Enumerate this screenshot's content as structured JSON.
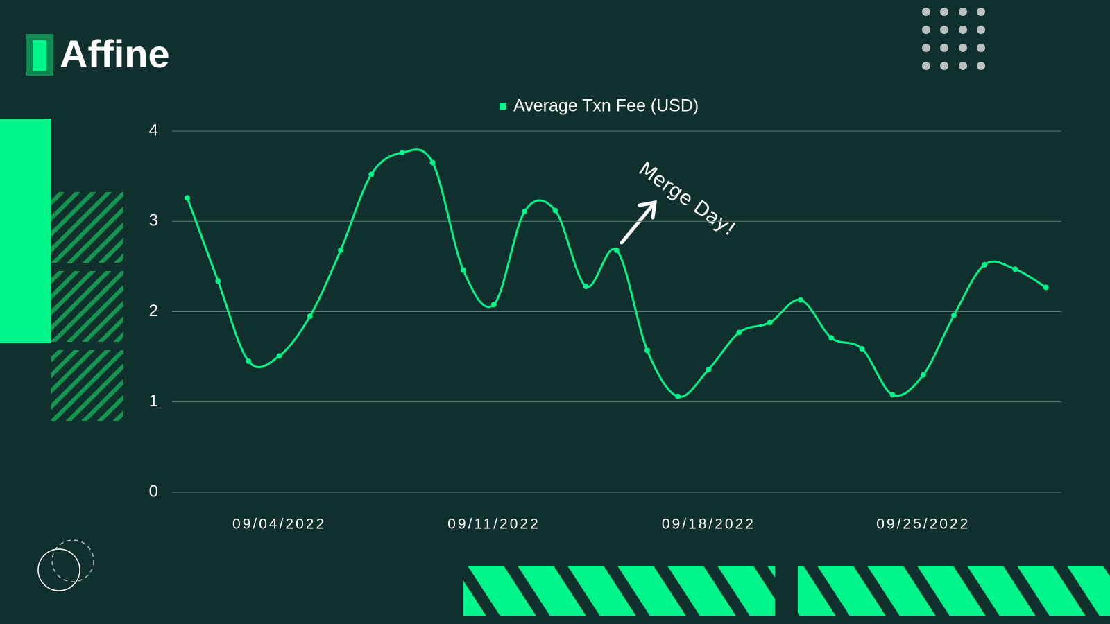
{
  "brand": "Affine",
  "chart_data": {
    "type": "line",
    "categories": [
      null,
      null,
      null,
      "09/04/2022",
      null,
      null,
      null,
      null,
      null,
      null,
      "09/11/2022",
      null,
      null,
      null,
      null,
      null,
      null,
      "09/18/2022",
      null,
      null,
      null,
      null,
      null,
      null,
      "09/25/2022",
      null,
      null,
      null,
      null
    ],
    "series": [
      {
        "name": "Average Txn Fee (USD)",
        "color": "#00f58a",
        "values": [
          3.26,
          2.34,
          1.45,
          1.51,
          1.95,
          2.68,
          3.52,
          3.76,
          3.65,
          2.46,
          2.08,
          3.11,
          3.12,
          2.28,
          2.68,
          1.57,
          1.06,
          1.36,
          1.77,
          1.88,
          2.13,
          1.71,
          1.59,
          1.08,
          1.3,
          1.96,
          2.52,
          2.47,
          2.27
        ]
      }
    ],
    "ylim": [
      0,
      4
    ],
    "yticks": [
      0,
      1,
      2,
      3,
      4
    ],
    "grid": true,
    "legend": "top",
    "annotation": "Merge Day!"
  }
}
